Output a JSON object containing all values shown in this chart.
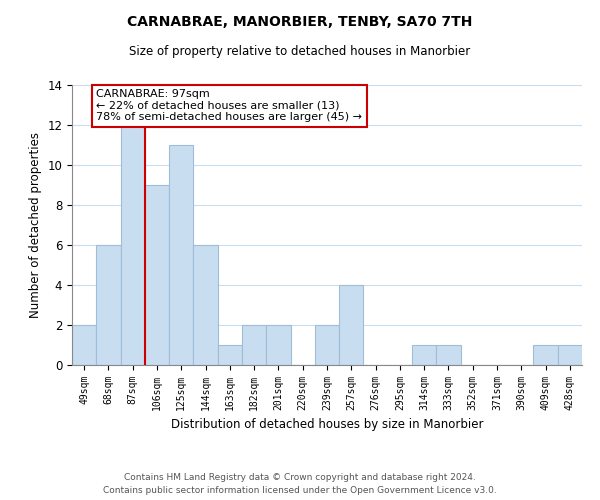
{
  "title": "CARNABRAE, MANORBIER, TENBY, SA70 7TH",
  "subtitle": "Size of property relative to detached houses in Manorbier",
  "xlabel": "Distribution of detached houses by size in Manorbier",
  "ylabel": "Number of detached properties",
  "bin_labels": [
    "49sqm",
    "68sqm",
    "87sqm",
    "106sqm",
    "125sqm",
    "144sqm",
    "163sqm",
    "182sqm",
    "201sqm",
    "220sqm",
    "239sqm",
    "257sqm",
    "276sqm",
    "295sqm",
    "314sqm",
    "333sqm",
    "352sqm",
    "371sqm",
    "390sqm",
    "409sqm",
    "428sqm"
  ],
  "bar_heights": [
    2,
    6,
    12,
    9,
    11,
    6,
    1,
    2,
    2,
    0,
    2,
    4,
    0,
    0,
    1,
    1,
    0,
    0,
    0,
    1,
    1
  ],
  "bar_color": "#c8ddf0",
  "bar_edge_color": "#a0bcd8",
  "ylim": [
    0,
    14
  ],
  "yticks": [
    0,
    2,
    4,
    6,
    8,
    10,
    12,
    14
  ],
  "property_line_color": "#cc0000",
  "annotation_title": "CARNABRAE: 97sqm",
  "annotation_line1": "← 22% of detached houses are smaller (13)",
  "annotation_line2": "78% of semi-detached houses are larger (45) →",
  "annotation_box_color": "#ffffff",
  "annotation_box_edge_color": "#cc0000",
  "footnote1": "Contains HM Land Registry data © Crown copyright and database right 2024.",
  "footnote2": "Contains public sector information licensed under the Open Government Licence v3.0.",
  "background_color": "#ffffff",
  "grid_color": "#c8ddf0"
}
